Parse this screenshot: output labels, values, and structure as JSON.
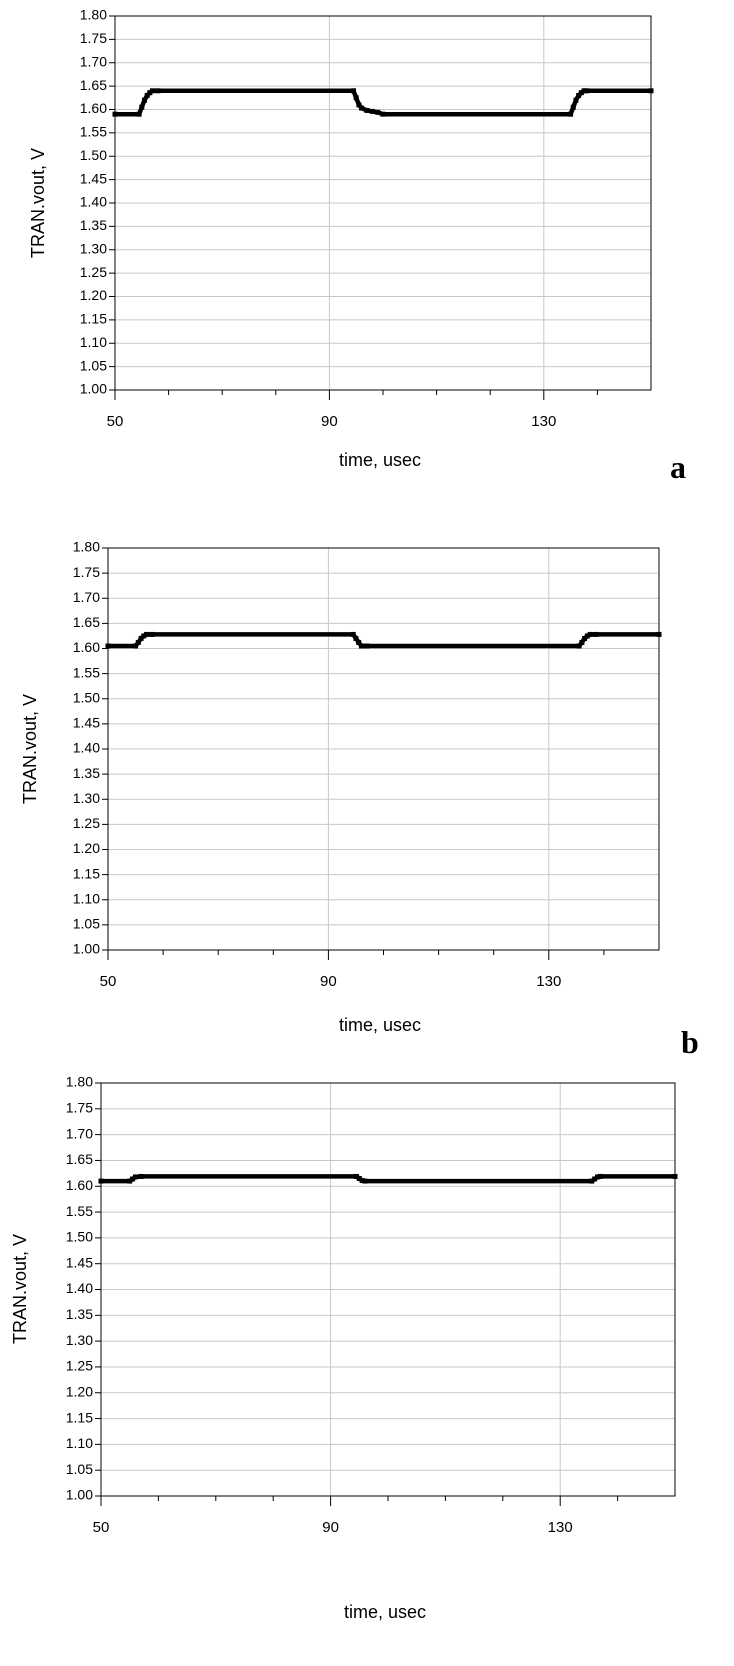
{
  "chart_data": [
    {
      "type": "line",
      "panel_letter": "a",
      "xlabel": "time, usec",
      "ylabel": "TRAN.vout, V",
      "xlim": [
        50,
        150
      ],
      "ylim": [
        1.0,
        1.8
      ],
      "xticks": [
        "50",
        "90",
        "130"
      ],
      "yticks": [
        "1.00",
        "1.05",
        "1.10",
        "1.15",
        "1.20",
        "1.25",
        "1.30",
        "1.35",
        "1.40",
        "1.45",
        "1.50",
        "1.55",
        "1.60",
        "1.65",
        "1.70",
        "1.75",
        "1.80"
      ],
      "grid": true,
      "series": [
        {
          "x": [
            50,
            54.5,
            55,
            55.5,
            56,
            56.5,
            57,
            58,
            94.5,
            95,
            95.5,
            96,
            97,
            98,
            99,
            100,
            135,
            135.5,
            136,
            136.5,
            137,
            137.5,
            138,
            150
          ],
          "y": [
            1.59,
            1.59,
            1.605,
            1.62,
            1.63,
            1.636,
            1.64,
            1.64,
            1.64,
            1.625,
            1.61,
            1.603,
            1.598,
            1.596,
            1.594,
            1.59,
            1.59,
            1.605,
            1.62,
            1.63,
            1.636,
            1.64,
            1.64,
            1.64
          ]
        }
      ]
    },
    {
      "type": "line",
      "panel_letter": "b",
      "xlabel": "time, usec",
      "ylabel": "TRAN.vout, V",
      "xlim": [
        50,
        150
      ],
      "ylim": [
        1.0,
        1.8
      ],
      "xticks": [
        "50",
        "90",
        "130"
      ],
      "yticks": [
        "1.00",
        "1.05",
        "1.10",
        "1.15",
        "1.20",
        "1.25",
        "1.30",
        "1.35",
        "1.40",
        "1.45",
        "1.50",
        "1.55",
        "1.60",
        "1.65",
        "1.70",
        "1.75",
        "1.80"
      ],
      "grid": true,
      "series": [
        {
          "x": [
            50,
            55,
            55.5,
            56,
            56.5,
            57,
            58,
            94.5,
            95,
            95.5,
            96,
            97,
            135.5,
            136,
            136.5,
            137,
            137.5,
            138.5,
            150
          ],
          "y": [
            1.605,
            1.605,
            1.612,
            1.62,
            1.625,
            1.628,
            1.628,
            1.628,
            1.62,
            1.612,
            1.605,
            1.605,
            1.605,
            1.612,
            1.62,
            1.625,
            1.628,
            1.628,
            1.628
          ]
        }
      ]
    },
    {
      "type": "line",
      "panel_letter": "",
      "xlabel": "time, usec",
      "ylabel": "TRAN.vout, V",
      "xlim": [
        50,
        150
      ],
      "ylim": [
        1.0,
        1.8
      ],
      "xticks": [
        "50",
        "90",
        "130"
      ],
      "yticks": [
        "1.00",
        "1.05",
        "1.10",
        "1.15",
        "1.20",
        "1.25",
        "1.30",
        "1.35",
        "1.40",
        "1.45",
        "1.50",
        "1.55",
        "1.60",
        "1.65",
        "1.70",
        "1.75",
        "1.80"
      ],
      "grid": true,
      "series": [
        {
          "x": [
            50,
            55,
            55.5,
            56,
            57,
            94.5,
            95,
            95.5,
            96,
            135.5,
            136,
            136.5,
            137,
            150
          ],
          "y": [
            1.61,
            1.61,
            1.614,
            1.618,
            1.619,
            1.619,
            1.615,
            1.611,
            1.61,
            1.61,
            1.614,
            1.618,
            1.619,
            1.619
          ]
        }
      ]
    }
  ]
}
